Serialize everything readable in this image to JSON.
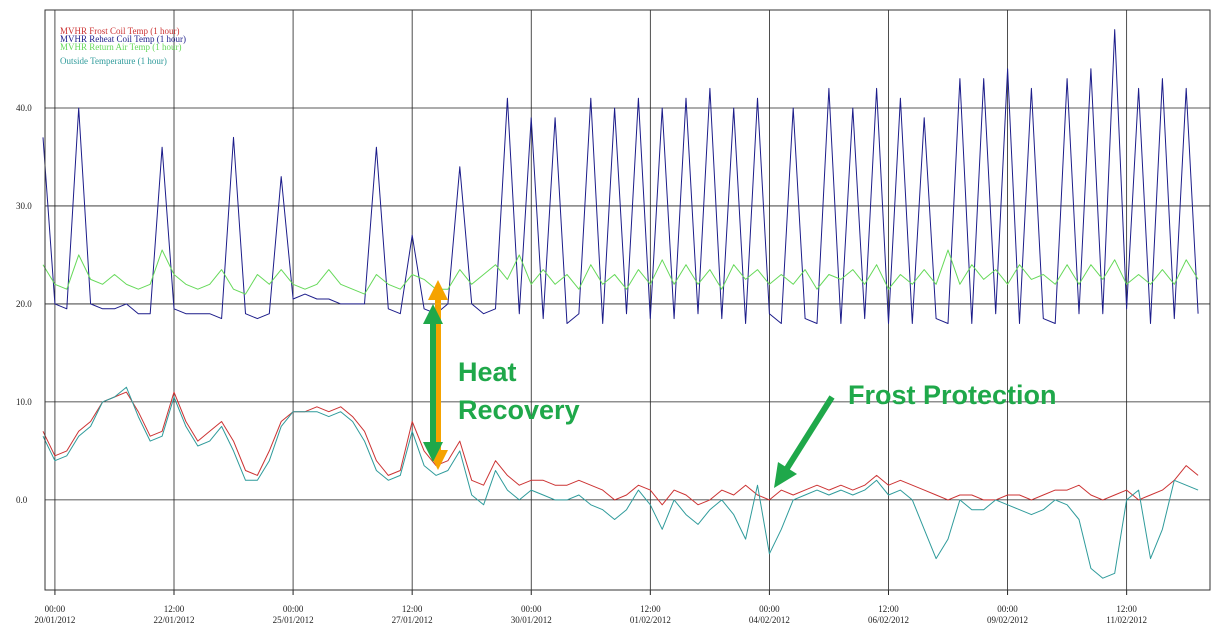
{
  "chart_data": {
    "type": "line",
    "annotations": [
      "Heat",
      "Recovery",
      "Frost Protection"
    ],
    "legend": "top-left",
    "grid": true,
    "x": [
      "2012-01-19 18:00",
      "2012-01-20 00:00",
      "2012-01-20 06:00",
      "2012-01-20 12:00",
      "2012-01-20 18:00",
      "2012-01-21 00:00",
      "2012-01-21 06:00",
      "2012-01-21 12:00",
      "2012-01-21 18:00",
      "2012-01-22 00:00",
      "2012-01-22 06:00",
      "2012-01-22 12:00",
      "2012-01-22 18:00",
      "2012-01-23 00:00",
      "2012-01-23 06:00",
      "2012-01-23 12:00",
      "2012-01-23 18:00",
      "2012-01-24 00:00",
      "2012-01-24 06:00",
      "2012-01-24 12:00",
      "2012-01-24 18:00",
      "2012-01-25 00:00",
      "2012-01-25 06:00",
      "2012-01-25 12:00",
      "2012-01-25 18:00",
      "2012-01-26 00:00",
      "2012-01-26 06:00",
      "2012-01-26 12:00",
      "2012-01-26 18:00",
      "2012-01-27 00:00",
      "2012-01-27 06:00",
      "2012-01-27 12:00",
      "2012-01-27 18:00",
      "2012-01-28 00:00",
      "2012-01-28 06:00",
      "2012-01-28 12:00",
      "2012-01-28 18:00",
      "2012-01-29 00:00",
      "2012-01-29 06:00",
      "2012-01-29 12:00",
      "2012-01-29 18:00",
      "2012-01-30 00:00",
      "2012-01-30 06:00",
      "2012-01-30 12:00",
      "2012-01-30 18:00",
      "2012-01-31 00:00",
      "2012-01-31 06:00",
      "2012-01-31 12:00",
      "2012-01-31 18:00",
      "2012-02-01 00:00",
      "2012-02-01 06:00",
      "2012-02-01 12:00",
      "2012-02-01 18:00",
      "2012-02-02 00:00",
      "2012-02-02 06:00",
      "2012-02-02 12:00",
      "2012-02-02 18:00",
      "2012-02-03 00:00",
      "2012-02-03 06:00",
      "2012-02-03 12:00",
      "2012-02-03 18:00",
      "2012-02-04 00:00",
      "2012-02-04 06:00",
      "2012-02-04 12:00",
      "2012-02-04 18:00",
      "2012-02-05 00:00",
      "2012-02-05 06:00",
      "2012-02-05 12:00",
      "2012-02-05 18:00",
      "2012-02-06 00:00",
      "2012-02-06 06:00",
      "2012-02-06 12:00",
      "2012-02-06 18:00",
      "2012-02-07 00:00",
      "2012-02-07 06:00",
      "2012-02-07 12:00",
      "2012-02-07 18:00",
      "2012-02-08 00:00",
      "2012-02-08 06:00",
      "2012-02-08 12:00",
      "2012-02-08 18:00",
      "2012-02-09 00:00",
      "2012-02-09 06:00",
      "2012-02-09 12:00",
      "2012-02-09 18:00",
      "2012-02-10 00:00",
      "2012-02-10 06:00",
      "2012-02-10 12:00",
      "2012-02-10 18:00",
      "2012-02-11 00:00",
      "2012-02-11 06:00",
      "2012-02-11 12:00",
      "2012-02-11 18:00",
      "2012-02-12 00:00",
      "2012-02-12 06:00",
      "2012-02-12 12:00",
      "2012-02-12 18:00",
      "2012-02-13 00:00"
    ],
    "xlim": [
      "2012-01-19 19:00",
      "2012-02-13 06:00"
    ],
    "xticks": [
      {
        "value": "2012-01-20 00:00",
        "label": [
          "00:00",
          "20/01/2012"
        ]
      },
      {
        "value": "2012-01-22 12:00",
        "label": [
          "12:00",
          "22/01/2012"
        ]
      },
      {
        "value": "2012-01-25 00:00",
        "label": [
          "00:00",
          "25/01/2012"
        ]
      },
      {
        "value": "2012-01-27 12:00",
        "label": [
          "12:00",
          "27/01/2012"
        ]
      },
      {
        "value": "2012-01-30 00:00",
        "label": [
          "00:00",
          "30/01/2012"
        ]
      },
      {
        "value": "2012-02-01 12:00",
        "label": [
          "12:00",
          "01/02/2012"
        ]
      },
      {
        "value": "2012-02-04 00:00",
        "label": [
          "00:00",
          "04/02/2012"
        ]
      },
      {
        "value": "2012-02-06 12:00",
        "label": [
          "12:00",
          "06/02/2012"
        ]
      },
      {
        "value": "2012-02-09 00:00",
        "label": [
          "00:00",
          "09/02/2012"
        ]
      },
      {
        "value": "2012-02-11 12:00",
        "label": [
          "12:00",
          "11/02/2012"
        ]
      }
    ],
    "ylim": [
      -9.2,
      50
    ],
    "yticks": [
      {
        "value": 0,
        "label": "0.0"
      },
      {
        "value": 10,
        "label": "10.0"
      },
      {
        "value": 20,
        "label": "20.0"
      },
      {
        "value": 30,
        "label": "30.0"
      },
      {
        "value": 40,
        "label": "40.0"
      }
    ],
    "series": [
      {
        "name": "MVHR Reheat Coil Temp (1 hour)",
        "color": "#1c1c8a",
        "values": [
          37,
          20,
          19.5,
          40,
          20,
          19.5,
          19.5,
          20,
          19,
          19,
          36,
          19.5,
          19,
          19,
          19,
          18.5,
          37,
          19,
          18.5,
          19,
          33,
          20.5,
          21,
          20.5,
          20.5,
          20,
          20,
          20,
          36,
          19.5,
          19,
          27,
          19.5,
          19,
          20,
          34,
          20,
          19,
          19.5,
          41,
          19,
          39,
          18.5,
          39,
          18,
          19,
          41,
          18,
          40,
          19,
          41,
          18.5,
          40,
          18.5,
          41,
          19,
          42,
          18.5,
          40,
          18,
          41,
          19,
          18,
          40,
          18.5,
          18,
          42,
          18,
          40,
          18.5,
          42,
          18,
          41,
          18,
          39,
          18.5,
          18,
          43,
          18,
          43,
          19,
          44,
          18,
          42,
          18.5,
          18,
          43,
          19,
          44,
          19,
          48,
          19.5,
          42,
          18,
          43,
          18.5,
          42,
          19
        ]
      },
      {
        "name": "MVHR Return Air Temp (1 hour)",
        "color": "#66d95a",
        "values": [
          24,
          22,
          21.5,
          25,
          22.5,
          22,
          23,
          22,
          21.5,
          22,
          25.5,
          23,
          22,
          21.5,
          22,
          23.5,
          21.5,
          21,
          23,
          22,
          23.5,
          22,
          21.5,
          22,
          23.5,
          22,
          21.5,
          21,
          23,
          22,
          21.5,
          23,
          22.5,
          21.5,
          21.5,
          23.5,
          22,
          23,
          24,
          22.5,
          25,
          22,
          23.5,
          22,
          23,
          21.5,
          24,
          22,
          23,
          21.5,
          23.5,
          22,
          24.5,
          22,
          24,
          22,
          23.5,
          21.5,
          24,
          22.5,
          23.5,
          22,
          23,
          22,
          23.5,
          21.5,
          23,
          22.5,
          23.5,
          22,
          24,
          21.5,
          23,
          22,
          23.5,
          22,
          25.5,
          22,
          24,
          22.5,
          23.5,
          22,
          24,
          22.5,
          23,
          22,
          24,
          22,
          24,
          22.5,
          24.5,
          22,
          23,
          22,
          23.5,
          22,
          24.5,
          22.5
        ]
      },
      {
        "name": "MVHR Frost Coil Temp (1 hour)",
        "color": "#cc3333",
        "values": [
          7,
          4.5,
          5,
          7,
          8,
          10,
          10.5,
          11,
          9,
          6.5,
          7,
          11,
          8,
          6,
          7,
          8,
          6,
          3,
          2.5,
          5,
          8,
          9,
          9,
          9.5,
          9,
          9.5,
          8.5,
          7,
          4,
          2.5,
          3,
          8,
          5,
          3.5,
          4,
          6,
          2,
          1.5,
          4,
          2.5,
          1.5,
          2,
          2,
          1.5,
          1.5,
          2,
          1.5,
          1,
          0,
          0.5,
          1.5,
          1,
          -0.5,
          1,
          0.5,
          -0.5,
          0,
          1,
          0.5,
          1.5,
          0.5,
          0,
          1,
          0.5,
          1,
          1.5,
          1,
          1.5,
          1,
          1.5,
          2.5,
          1.5,
          2,
          1.5,
          1,
          0.5,
          0,
          0.5,
          0.5,
          0,
          0,
          0.5,
          0.5,
          0,
          0.5,
          1,
          1,
          1.5,
          0.5,
          0,
          0.5,
          1,
          0,
          0.5,
          1,
          2,
          3.5,
          2.5
        ]
      },
      {
        "name": "Outside Temperature (1 hour)",
        "color": "#2f9b9b",
        "values": [
          6.5,
          4,
          4.5,
          6.5,
          7.5,
          10,
          10.5,
          11.5,
          8.5,
          6,
          6.5,
          10.5,
          7.5,
          5.5,
          6,
          7.5,
          5,
          2,
          2,
          4,
          7.5,
          9,
          9,
          9,
          8.5,
          9,
          8,
          6,
          3,
          2,
          2.5,
          7,
          3.5,
          2.5,
          3,
          5,
          0.5,
          -0.5,
          3,
          1,
          0,
          1,
          0.5,
          0,
          0,
          0.5,
          -0.5,
          -1,
          -2,
          -1,
          1,
          -0.5,
          -3,
          0,
          -1.5,
          -2.5,
          -1,
          0,
          -1.5,
          -4,
          1.5,
          -5.5,
          -3,
          0,
          0.5,
          1,
          0.5,
          1,
          0.5,
          1,
          2,
          0.5,
          1,
          0,
          -3,
          -6,
          -4,
          0,
          -1,
          -1,
          0,
          -0.5,
          -1,
          -1.5,
          -1,
          0,
          -0.5,
          -2,
          -7,
          -8,
          -7.5,
          0,
          1,
          -6,
          -3,
          2,
          1.5,
          1
        ]
      }
    ]
  }
}
